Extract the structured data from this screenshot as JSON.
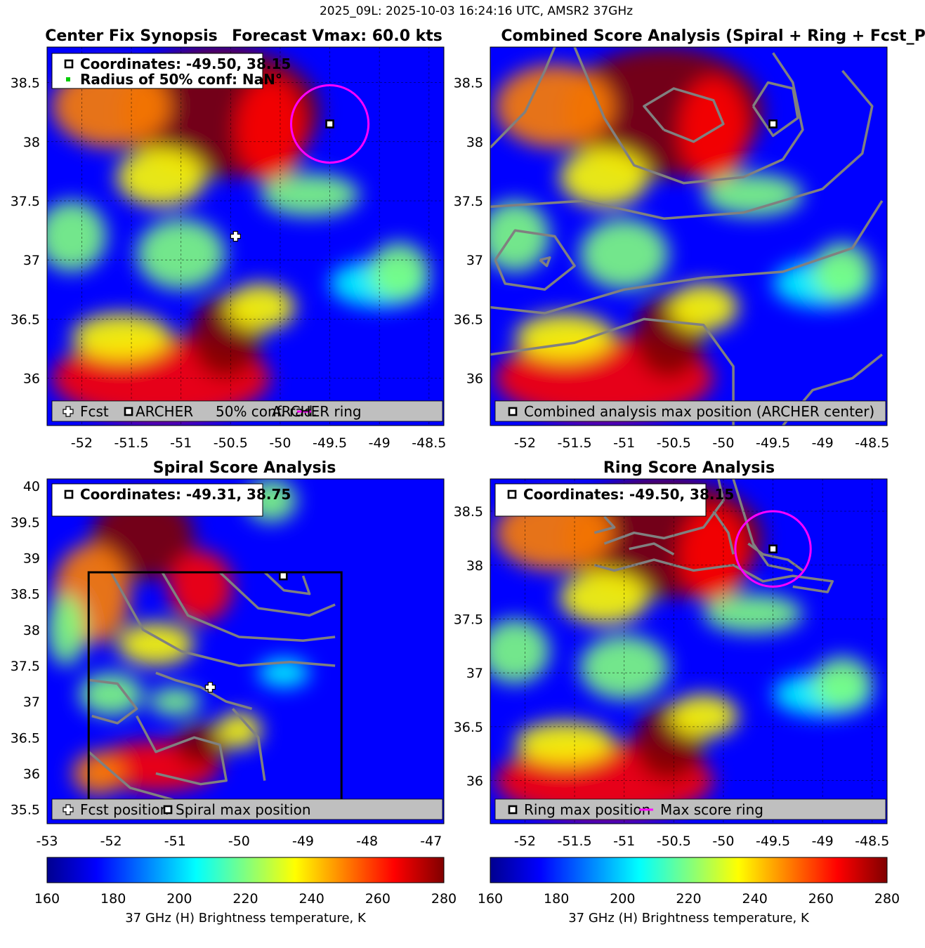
{
  "suptitle": "2025_09L: 2025-10-03 16:24:16 UTC, AMSR2 37GHz",
  "colors": {
    "fcst_marker": "#ffffff",
    "center_marker": "#000000",
    "ring": "#ff00ff",
    "conf_marker": "#00cc00",
    "contour": "#808080",
    "legend_bg": "#bfbfbf"
  },
  "colormap_stops": [
    "#00008f",
    "#0000ff",
    "#0080ff",
    "#00ffff",
    "#80ff80",
    "#ffff00",
    "#ff8000",
    "#ff0000",
    "#800000"
  ],
  "chart_data": [
    {
      "type": "heatmap",
      "name": "center-fix-synopsis",
      "title_left": "Center Fix Synopsis",
      "title_right": "Forecast Vmax: 60.0 kts",
      "xlim": [
        -52.35,
        -48.35
      ],
      "ylim": [
        35.6,
        38.8
      ],
      "xticks": [
        -52,
        -51.5,
        -51,
        -50.5,
        -50,
        -49.5,
        -49,
        -48.5
      ],
      "yticks": [
        36,
        36.5,
        37,
        37.5,
        38,
        38.5
      ],
      "xtick_labels": [
        "-52",
        "-51.5",
        "-51",
        "-50.5",
        "-50",
        "-49.5",
        "-49",
        "-48.5"
      ],
      "ytick_labels": [
        "36",
        "36.5",
        "37",
        "37.5",
        "38",
        "38.5"
      ],
      "grid": true,
      "fcst_position": {
        "lon": -50.45,
        "lat": 37.2
      },
      "archer_center": {
        "lon": -49.5,
        "lat": 38.15
      },
      "ring_radius_deg": 0.39,
      "info_lines": [
        "Coordinates: -49.50, 38.15",
        "Radius of 50% conf: NaN°"
      ],
      "legend": [
        "Fcst",
        "ARCHER",
        "50% conf. rad.",
        "ARCHER ring"
      ]
    },
    {
      "type": "heatmap",
      "name": "combined-score-analysis",
      "title": "Combined Score Analysis (Spiral + Ring + Fcst_Pe",
      "xlim": [
        -52.35,
        -48.35
      ],
      "ylim": [
        35.6,
        38.8
      ],
      "xticks": [
        -52,
        -51.5,
        -51,
        -50.5,
        -50,
        -49.5,
        -49,
        -48.5
      ],
      "yticks": [
        36,
        36.5,
        37,
        37.5,
        38,
        38.5
      ],
      "xtick_labels": [
        "-52",
        "-51.5",
        "-51",
        "-50.5",
        "-50",
        "-49.5",
        "-49",
        "-48.5"
      ],
      "ytick_labels": [
        "36",
        "36.5",
        "37",
        "37.5",
        "38",
        "38.5"
      ],
      "grid": false,
      "archer_center": {
        "lon": -49.5,
        "lat": 38.15
      },
      "legend": [
        "Combined analysis max position (ARCHER center)"
      ]
    },
    {
      "type": "heatmap",
      "name": "spiral-score-analysis",
      "title": "Spiral Score Analysis",
      "xlim": [
        -53,
        -46.8
      ],
      "ylim": [
        35.3,
        40.1
      ],
      "xticks": [
        -53,
        -52,
        -51,
        -50,
        -49,
        -48,
        -47
      ],
      "yticks": [
        35.5,
        36,
        36.5,
        37,
        37.5,
        38,
        38.5,
        39,
        39.5,
        40
      ],
      "xtick_labels": [
        "-53",
        "-52",
        "-51",
        "-50",
        "-49",
        "-48",
        "-47"
      ],
      "ytick_labels": [
        "35.5",
        "36",
        "36.5",
        "37",
        "37.5",
        "38",
        "38.5",
        "39",
        "39.5",
        "40"
      ],
      "grid": false,
      "search_box": {
        "lon_min": -52.35,
        "lon_max": -48.4,
        "lat_min": 35.6,
        "lat_max": 38.8
      },
      "fcst_position": {
        "lon": -50.45,
        "lat": 37.2
      },
      "max_position": {
        "lon": -49.31,
        "lat": 38.75
      },
      "info_lines": [
        "Coordinates: -49.31, 38.75"
      ],
      "legend": [
        "Fcst position",
        "Spiral max position"
      ]
    },
    {
      "type": "heatmap",
      "name": "ring-score-analysis",
      "title": "Ring Score Analysis",
      "xlim": [
        -52.35,
        -48.35
      ],
      "ylim": [
        35.6,
        38.8
      ],
      "xticks": [
        -52,
        -51.5,
        -51,
        -50.5,
        -50,
        -49.5,
        -49,
        -48.5
      ],
      "yticks": [
        36,
        36.5,
        37,
        37.5,
        38,
        38.5
      ],
      "xtick_labels": [
        "-52",
        "-51.5",
        "-51",
        "-50.5",
        "-50",
        "-49.5",
        "-49",
        "-48.5"
      ],
      "ytick_labels": [
        "36",
        "36.5",
        "37",
        "37.5",
        "38",
        "38.5"
      ],
      "grid": true,
      "max_position": {
        "lon": -49.5,
        "lat": 38.15
      },
      "ring_radius_deg": 0.38,
      "info_lines": [
        "Coordinates: -49.50, 38.15"
      ],
      "legend": [
        "Ring max position",
        "Max score ring"
      ]
    }
  ],
  "colorbars": [
    {
      "name": "colorbar-left",
      "min": 160,
      "max": 280,
      "ticks": [
        160,
        180,
        200,
        220,
        240,
        260,
        280
      ],
      "tick_labels": [
        "160",
        "180",
        "200",
        "220",
        "240",
        "260",
        "280"
      ],
      "label": "37 GHz (H) Brightness temperature, K"
    },
    {
      "name": "colorbar-right",
      "min": 160,
      "max": 280,
      "ticks": [
        160,
        180,
        200,
        220,
        240,
        260,
        280
      ],
      "tick_labels": [
        "160",
        "180",
        "200",
        "220",
        "240",
        "260",
        "280"
      ],
      "label": "37 GHz (H) Brightness temperature, K"
    }
  ]
}
